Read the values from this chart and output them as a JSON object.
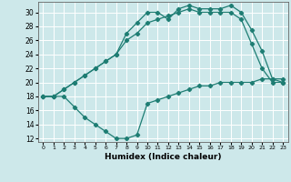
{
  "xlabel": "Humidex (Indice chaleur)",
  "bg_color": "#cde8ea",
  "grid_color": "#ffffff",
  "line_color": "#1e7d73",
  "xlim": [
    -0.5,
    23.5
  ],
  "ylim": [
    11.5,
    31.5
  ],
  "xticks": [
    0,
    1,
    2,
    3,
    4,
    5,
    6,
    7,
    8,
    9,
    10,
    11,
    12,
    13,
    14,
    15,
    16,
    17,
    18,
    19,
    20,
    21,
    22,
    23
  ],
  "yticks": [
    12,
    14,
    16,
    18,
    20,
    22,
    24,
    26,
    28,
    30
  ],
  "curve1_x": [
    0,
    1,
    2,
    3,
    4,
    5,
    6,
    7,
    8,
    9,
    10,
    11,
    12,
    13,
    14,
    15,
    16,
    17,
    18,
    19,
    20,
    21,
    22,
    23
  ],
  "curve1_y": [
    18,
    18,
    19,
    20,
    21,
    22,
    23,
    24,
    27,
    28.5,
    30,
    30,
    29,
    30.5,
    31,
    30.5,
    30.5,
    30.5,
    31,
    30,
    27.5,
    24.5,
    20.5,
    20
  ],
  "curve2_x": [
    0,
    1,
    2,
    3,
    4,
    5,
    6,
    7,
    8,
    9,
    10,
    11,
    12,
    13,
    14,
    15,
    16,
    17,
    18,
    19,
    20,
    21,
    22,
    23
  ],
  "curve2_y": [
    18,
    18,
    18,
    16.5,
    15,
    14,
    13,
    12,
    12,
    12.5,
    17,
    17.5,
    18,
    18.5,
    19,
    19.5,
    19.5,
    20,
    20,
    20,
    20,
    20.5,
    20.5,
    20.5
  ],
  "curve3_x": [
    0,
    1,
    2,
    3,
    4,
    5,
    6,
    7,
    8,
    9,
    10,
    11,
    12,
    13,
    14,
    15,
    16,
    17,
    18,
    19,
    20,
    21,
    22,
    23
  ],
  "curve3_y": [
    18,
    18,
    19,
    20,
    21,
    22,
    23,
    24,
    26,
    27,
    28.5,
    29,
    29.5,
    30,
    30.5,
    30,
    30,
    30,
    30,
    29,
    25.5,
    22,
    20,
    20
  ]
}
